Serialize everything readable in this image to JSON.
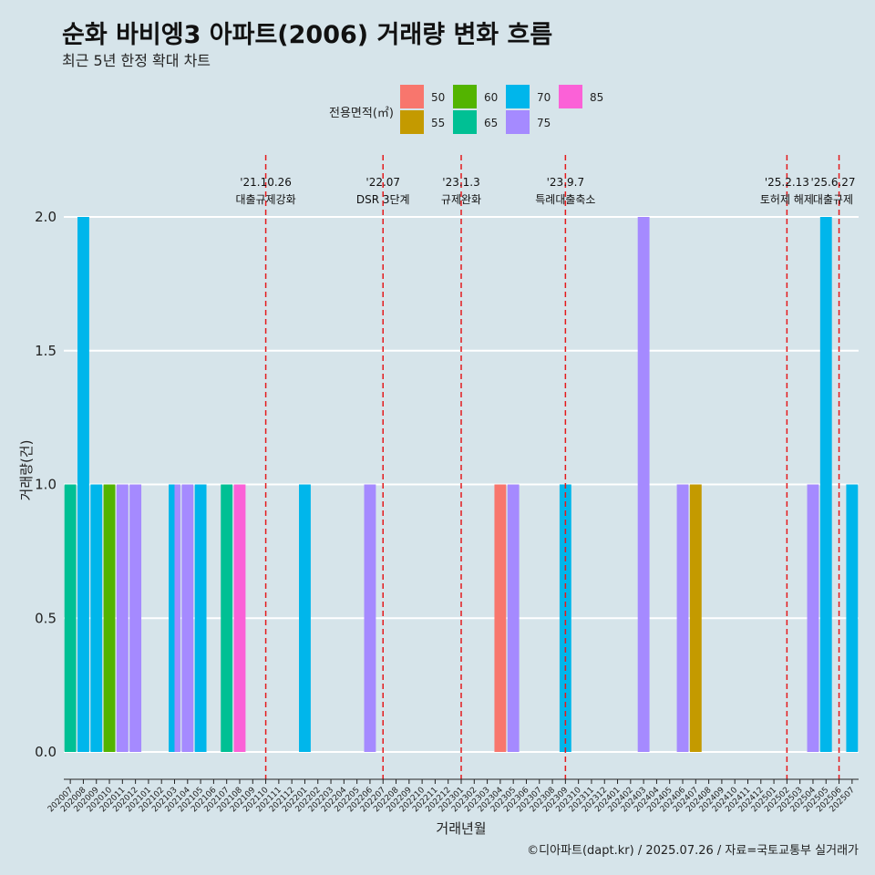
{
  "title": "순화 바비엥3 아파트(2006) 거래량 변화 흐름",
  "subtitle": "최근 5년 한정 확대 차트",
  "caption": "©디아파트(dapt.kr) / 2025.07.26 / 자료=국토교통부 실거래가",
  "chart_data": {
    "type": "bar",
    "xlabel": "거래년월",
    "ylabel": "거래량(건)",
    "ylim": [
      -0.05,
      2.1
    ],
    "yticks": [
      0.0,
      0.5,
      1.0,
      1.5,
      2.0
    ],
    "ytick_labels": [
      "0.0",
      "0.5",
      "1.0",
      "1.5",
      "2.0"
    ],
    "categories": [
      "202007",
      "202008",
      "202009",
      "202010",
      "202011",
      "202012",
      "202101",
      "202102",
      "202103",
      "202104",
      "202105",
      "202106",
      "202107",
      "202108",
      "202109",
      "202110",
      "202111",
      "202112",
      "202201",
      "202202",
      "202203",
      "202204",
      "202205",
      "202206",
      "202207",
      "202208",
      "202209",
      "202210",
      "202211",
      "202212",
      "202301",
      "202302",
      "202303",
      "202304",
      "202305",
      "202306",
      "202307",
      "202308",
      "202309",
      "202310",
      "202311",
      "202312",
      "202401",
      "202402",
      "202403",
      "202404",
      "202405",
      "202406",
      "202407",
      "202408",
      "202409",
      "202410",
      "202411",
      "202412",
      "202501",
      "202502",
      "202503",
      "202504",
      "202505",
      "202506",
      "202507"
    ],
    "legend_title": "전용면적(㎡)",
    "legend": [
      {
        "name": "50",
        "color": "#F8766D"
      },
      {
        "name": "55",
        "color": "#C49A00"
      },
      {
        "name": "60",
        "color": "#53B400"
      },
      {
        "name": "65",
        "color": "#00C094"
      },
      {
        "name": "70",
        "color": "#00B6EB"
      },
      {
        "name": "75",
        "color": "#A58AFF"
      },
      {
        "name": "85",
        "color": "#FB61D7"
      }
    ],
    "bars": [
      {
        "x": "202007",
        "area": "65",
        "value": 1
      },
      {
        "x": "202008",
        "area": "70",
        "value": 2
      },
      {
        "x": "202009",
        "area": "70",
        "value": 1
      },
      {
        "x": "202010",
        "area": "60",
        "value": 1
      },
      {
        "x": "202011",
        "area": "75",
        "value": 1
      },
      {
        "x": "202012",
        "area": "75",
        "value": 1
      },
      {
        "x": "202103",
        "area": "70",
        "value": 1
      },
      {
        "x": "202103",
        "area": "75",
        "value": 1
      },
      {
        "x": "202104",
        "area": "75",
        "value": 1
      },
      {
        "x": "202105",
        "area": "70",
        "value": 1
      },
      {
        "x": "202107",
        "area": "65",
        "value": 1
      },
      {
        "x": "202108",
        "area": "85",
        "value": 1
      },
      {
        "x": "202201",
        "area": "70",
        "value": 1
      },
      {
        "x": "202206",
        "area": "75",
        "value": 1
      },
      {
        "x": "202304",
        "area": "50",
        "value": 1
      },
      {
        "x": "202305",
        "area": "75",
        "value": 1
      },
      {
        "x": "202309",
        "area": "70",
        "value": 1
      },
      {
        "x": "202403",
        "area": "75",
        "value": 2
      },
      {
        "x": "202406",
        "area": "75",
        "value": 1
      },
      {
        "x": "202407",
        "area": "55",
        "value": 1
      },
      {
        "x": "202504",
        "area": "75",
        "value": 1
      },
      {
        "x": "202505",
        "area": "70",
        "value": 2
      },
      {
        "x": "202507",
        "area": "70",
        "value": 1
      }
    ],
    "events": [
      {
        "x": "202110",
        "date": "'21.10.26",
        "label": "대출규제강화"
      },
      {
        "x": "202207",
        "date": "'22.07",
        "label": "DSR 3단계"
      },
      {
        "x": "202301",
        "date": "'23.1.3",
        "label": "규제완화"
      },
      {
        "x": "202309",
        "date": "'23.9.7",
        "label": "특례대출축소"
      },
      {
        "x": "202502",
        "date": "'25.2.13",
        "label": "토허제 해제"
      },
      {
        "x": "202506",
        "date": "'25.6.27",
        "label": "대출규제"
      }
    ]
  }
}
